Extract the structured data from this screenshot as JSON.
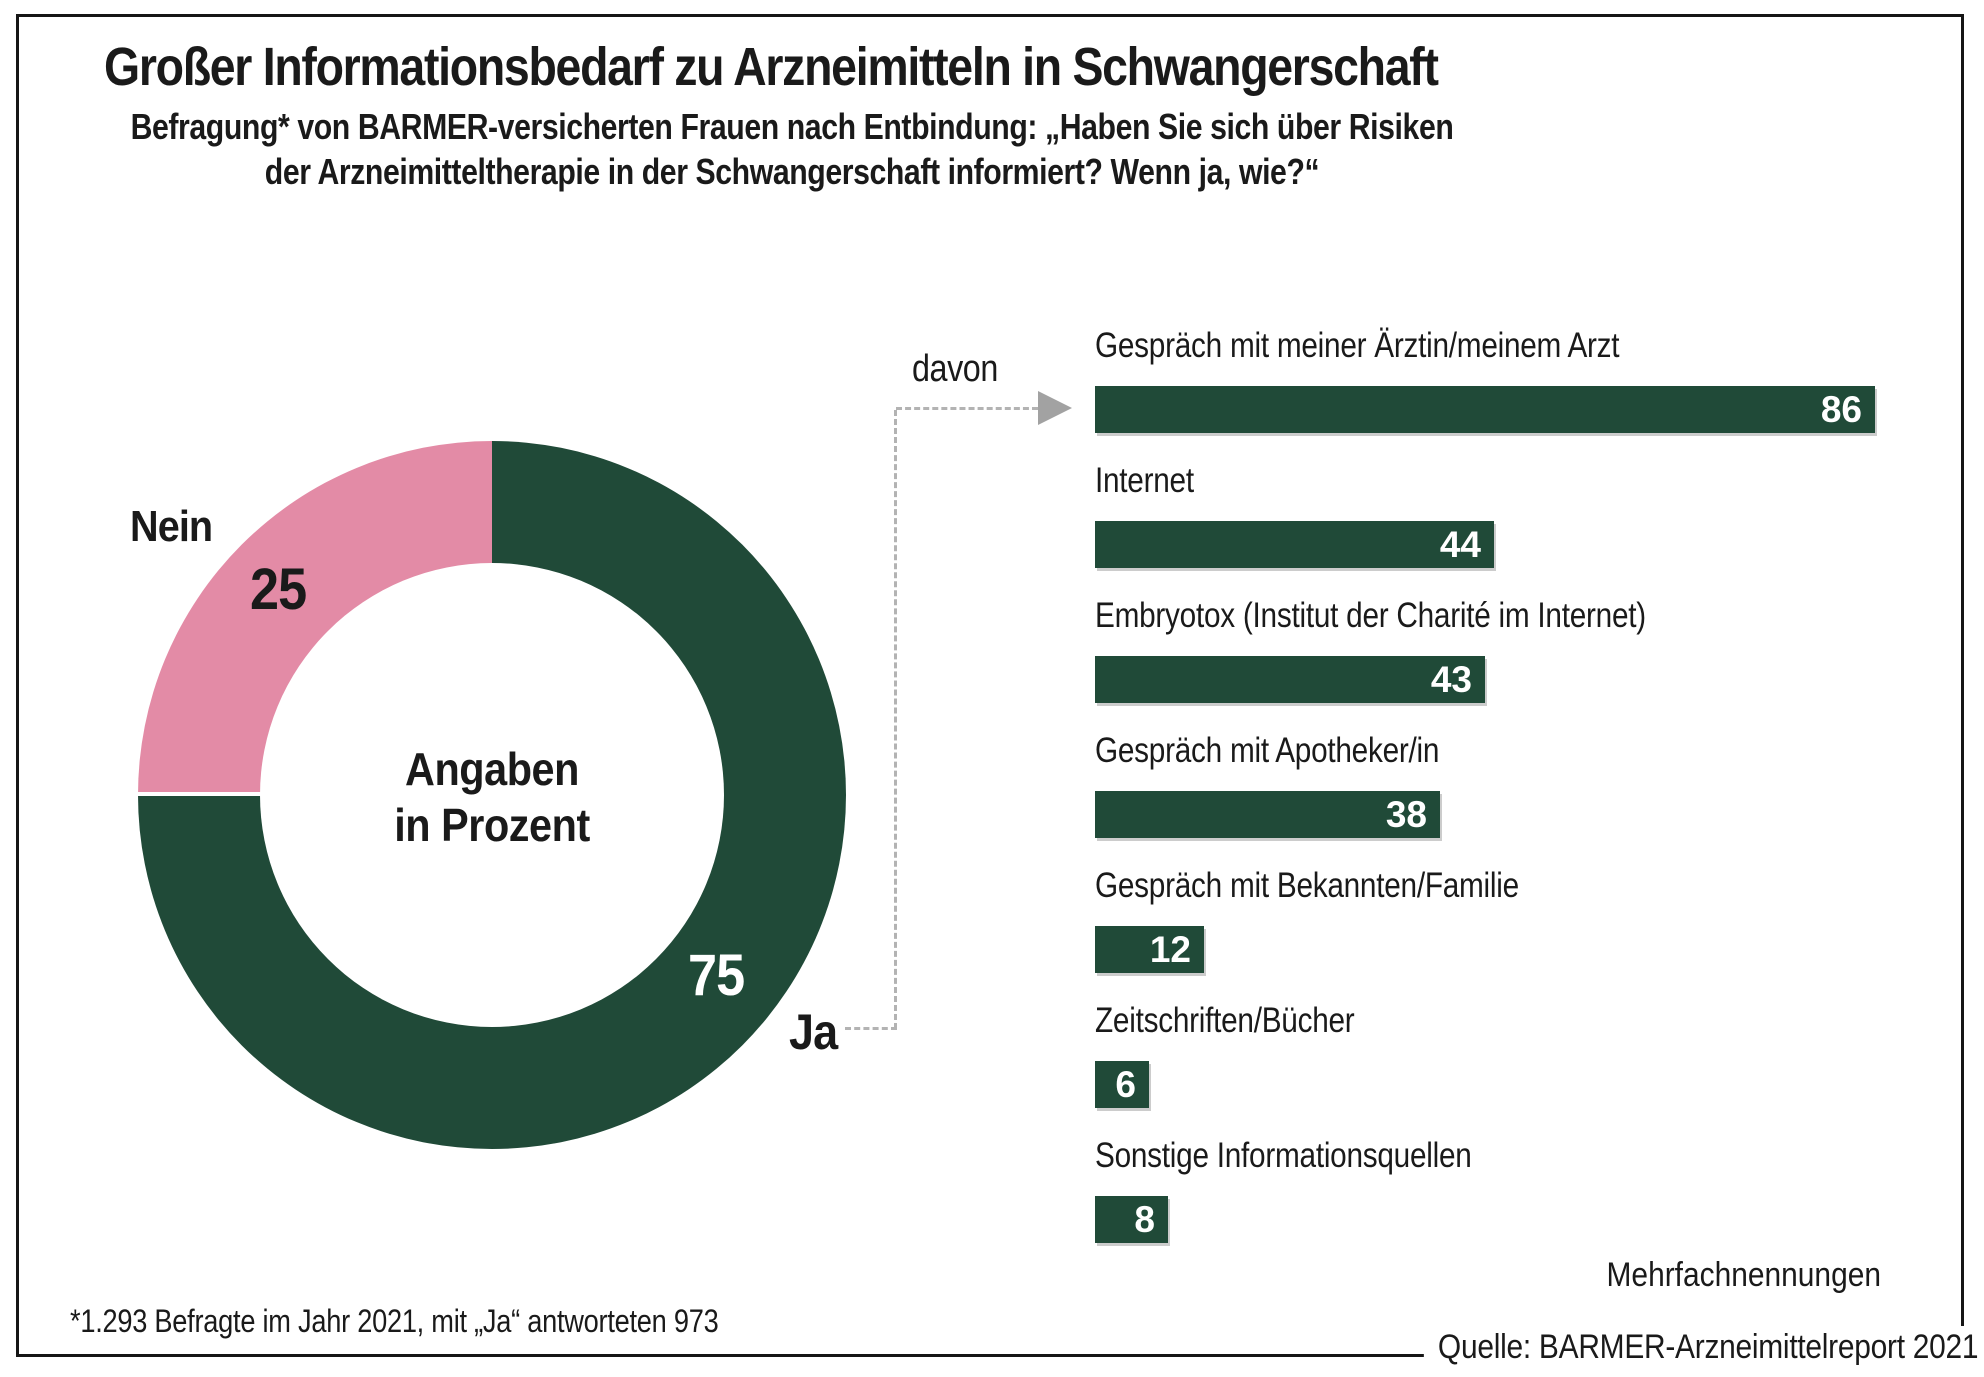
{
  "header": {
    "title": "Großer Informationsbedarf zu Arzneimitteln in Schwangerschaft",
    "subtitle_line1": "Befragung* von BARMER-versicherten Frauen nach Entbindung: „Haben Sie sich über Risiken",
    "subtitle_line2": "der Arzneimitteltherapie in der Schwangerschaft informiert? Wenn ja, wie?“"
  },
  "donut": {
    "center_line1": "Angaben",
    "center_line2": "in Prozent",
    "segments": [
      {
        "label": "Ja",
        "value": 75,
        "color": "#204a38"
      },
      {
        "label": "Nein",
        "value": 25,
        "color": "#e38ba6"
      }
    ]
  },
  "connector": {
    "label": "davon",
    "line_color": "#b3b3b3",
    "arrow_color": "#a2a2a2"
  },
  "bar_chart": {
    "bar_color": "#204a38",
    "max_value": 86,
    "items": [
      {
        "label": "Gespräch mit meiner Ärztin/meinem Arzt",
        "value": 86
      },
      {
        "label": "Internet",
        "value": 44
      },
      {
        "label": "Embryotox (Institut der Charité im Internet)",
        "value": 43
      },
      {
        "label": "Gespräch mit Apotheker/in",
        "value": 38
      },
      {
        "label": "Gespräch mit Bekannten/Familie",
        "value": 12
      },
      {
        "label": "Zeitschriften/Bücher",
        "value": 6
      },
      {
        "label": "Sonstige Informationsquellen",
        "value": 8
      }
    ],
    "note": "Mehrfachnennungen"
  },
  "footer": {
    "footnote": "*1.293 Befragte im Jahr 2021, mit „Ja“ antworteten 973",
    "source": "Quelle: BARMER-Arzneimittelreport 2021"
  },
  "chart_data": [
    {
      "type": "pie",
      "donut": true,
      "unit_note": "Angaben in Prozent",
      "labels": [
        "Ja",
        "Nein"
      ],
      "values": [
        75,
        25
      ],
      "colors": [
        "#204a38",
        "#e38ba6"
      ],
      "start_angle_deg": 0,
      "direction": "clockwise"
    },
    {
      "type": "bar",
      "orientation": "horizontal",
      "subset_label": "davon",
      "categories": [
        "Gespräch mit meiner Ärztin/meinem Arzt",
        "Internet",
        "Embryotox (Institut der Charité im Internet)",
        "Gespräch mit Apotheker/in",
        "Gespräch mit Bekannten/Familie",
        "Zeitschriften/Bücher",
        "Sonstige Informationsquellen"
      ],
      "values": [
        86,
        44,
        43,
        38,
        12,
        6,
        8
      ],
      "bar_color": "#204a38",
      "value_labels_inside": true,
      "xlim": [
        0,
        86
      ],
      "grid": false,
      "note": "Mehrfachnennungen"
    }
  ]
}
